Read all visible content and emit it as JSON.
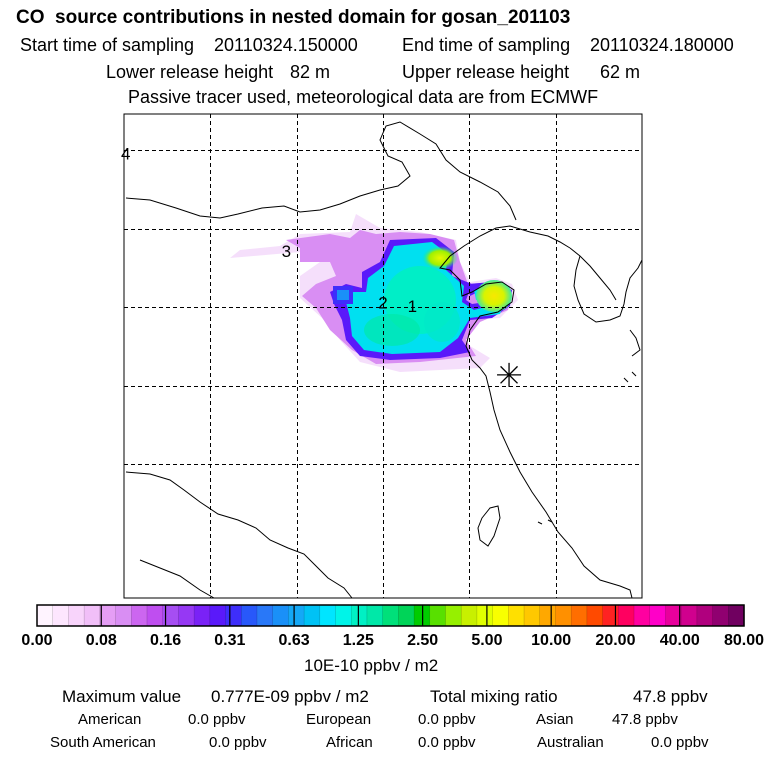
{
  "header": {
    "title": "CO  source contributions in nested domain for gosan_201103",
    "start_label": "Start time of sampling",
    "start_value": "20110324.150000",
    "end_label": "End time of sampling",
    "end_value": "20110324.180000",
    "lower_label": "Lower release height",
    "lower_value": "82 m",
    "upper_label": "Upper release height",
    "upper_value": "62 m",
    "note": "Passive tracer used, meteorological data are from ECMWF"
  },
  "chart_data": {
    "type": "heatmap",
    "title": "CO  source contributions in nested domain for gosan_201103",
    "units": "10E-10 ppbv / m2",
    "color_scale": {
      "tick_labels": [
        "0.00",
        "0.08",
        "0.16",
        "0.31",
        "0.63",
        "1.25",
        "2.50",
        "5.00",
        "10.00",
        "20.00",
        "40.00",
        "80.00"
      ],
      "segment_colors": [
        "#fff4ff",
        "#fde6fe",
        "#f8d4fb",
        "#f1bff8",
        "#e59ef5",
        "#d98ef3",
        "#cc66f0",
        "#bf4ef0",
        "#a64ef2",
        "#9638f4",
        "#7a22f6",
        "#5a19fa",
        "#3e2efb",
        "#2858fa",
        "#2978f8",
        "#1a90f8",
        "#14a8f6",
        "#00c2f5",
        "#00e5ff",
        "#00f4e8",
        "#00f0c4",
        "#00e8a8",
        "#00e07a",
        "#00d458",
        "#00cc00",
        "#58e000",
        "#96f000",
        "#c8f000",
        "#e0ff00",
        "#f8ff00",
        "#ffe000",
        "#ffc800",
        "#ffa800",
        "#ff9000",
        "#ff6e00",
        "#ff4a00",
        "#ff2222",
        "#ff0060",
        "#ff00a0",
        "#ff00c8",
        "#e8009c",
        "#d0008e",
        "#b0007e",
        "#900070",
        "#700060"
      ]
    },
    "markers": [
      {
        "label": "1",
        "lon": 124.2,
        "lat": 37.5
      },
      {
        "label": "2",
        "lon": 122.5,
        "lat": 37.7
      },
      {
        "label": "3",
        "lon": 116.9,
        "lat": 41.0
      },
      {
        "label": "4",
        "lon": 107.6,
        "lat": 47.2
      }
    ],
    "receptor": {
      "name": "gosan",
      "lon": 129.8,
      "lat": 33.2
    },
    "grid": true,
    "lon_lines": [
      112.5,
      117.5,
      122.5,
      127.5,
      132.5
    ],
    "lat_lines": [
      27.5,
      32.5,
      37.5,
      42.5,
      47.5
    ],
    "lon_range": [
      107.5,
      137.5
    ],
    "lat_range": [
      19.0,
      49.8
    ]
  },
  "stats": {
    "max_label": "Maximum value",
    "max_value": "0.777E-09 ppbv / m2",
    "total_label": "Total mixing ratio",
    "total_value": "47.8 ppbv",
    "regions": [
      {
        "name": "American",
        "value": "0.0 ppbv"
      },
      {
        "name": "European",
        "value": "0.0 ppbv"
      },
      {
        "name": "Asian",
        "value": "47.8 ppbv"
      },
      {
        "name": "South American",
        "value": "0.0 ppbv"
      },
      {
        "name": "African",
        "value": "0.0 ppbv"
      },
      {
        "name": "Australian",
        "value": "0.0 ppbv"
      }
    ]
  }
}
